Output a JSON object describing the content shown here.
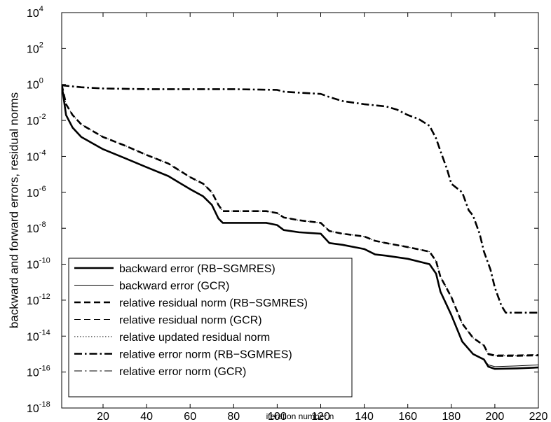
{
  "chart_data": {
    "type": "line",
    "title": "",
    "xlabel": "iteration number n",
    "ylabel": "backward and forward errors, residual norms",
    "xlim": [
      1,
      220
    ],
    "ylim": [
      1e-18,
      10000.0
    ],
    "yscale": "log",
    "grid": false,
    "legend_position": "bottom-left",
    "x_ticks": [
      20,
      40,
      60,
      80,
      100,
      120,
      140,
      160,
      180,
      200,
      220
    ],
    "y_ticks": [
      {
        "exp": "4",
        "value": 10000.0
      },
      {
        "exp": "2",
        "value": 100.0
      },
      {
        "exp": "0",
        "value": 1
      },
      {
        "exp": "-2",
        "value": 0.01
      },
      {
        "exp": "-4",
        "value": 0.0001
      },
      {
        "exp": "-6",
        "value": 1e-06
      },
      {
        "exp": "-8",
        "value": 1e-08
      },
      {
        "exp": "-10",
        "value": 1e-10
      },
      {
        "exp": "-12",
        "value": 1e-12
      },
      {
        "exp": "-14",
        "value": 1e-14
      },
      {
        "exp": "-16",
        "value": 1e-16
      },
      {
        "exp": "-18",
        "value": 1e-18
      }
    ],
    "series": [
      {
        "name": "backward error (RB−SGMRES)",
        "style": "thick-solid",
        "x": [
          1,
          3,
          6,
          10,
          20,
          30,
          40,
          50,
          60,
          66,
          70,
          73,
          75,
          80,
          95,
          100,
          103,
          110,
          120,
          124,
          130,
          140,
          145,
          150,
          160,
          170,
          173,
          175,
          180,
          185,
          190,
          195,
          197,
          200,
          210,
          220
        ],
        "y": [
          1,
          0.02,
          0.004,
          0.0012,
          0.00025,
          8e-05,
          2.5e-05,
          8e-06,
          1.5e-06,
          6e-07,
          2e-07,
          3.5e-08,
          2e-08,
          2e-08,
          2e-08,
          1.5e-08,
          8e-09,
          6e-09,
          5e-09,
          1.5e-09,
          1.2e-09,
          7e-10,
          3.5e-10,
          3e-10,
          2e-10,
          1e-10,
          3e-11,
          3e-12,
          1.5e-13,
          5e-15,
          1e-15,
          5e-16,
          2e-16,
          1.5e-16,
          1.6e-16,
          1.8e-16
        ]
      },
      {
        "name": "backward error (GCR)",
        "style": "thin-solid",
        "x": [
          1,
          3,
          6,
          10,
          20,
          30,
          40,
          50,
          60,
          66,
          70,
          73,
          75,
          80,
          95,
          100,
          103,
          110,
          120,
          124,
          130,
          140,
          145,
          150,
          160,
          170,
          173,
          175,
          180,
          185,
          190,
          195,
          197,
          200,
          210,
          220
        ],
        "y": [
          1,
          0.02,
          0.004,
          0.0012,
          0.00025,
          8e-05,
          2.5e-05,
          8e-06,
          1.5e-06,
          6e-07,
          2e-07,
          3.5e-08,
          2e-08,
          2e-08,
          2e-08,
          1.5e-08,
          8e-09,
          6e-09,
          5e-09,
          1.5e-09,
          1.2e-09,
          7e-10,
          3.5e-10,
          3e-10,
          2e-10,
          1e-10,
          3e-11,
          3e-12,
          1.5e-13,
          5e-15,
          1e-15,
          5e-16,
          2.5e-16,
          2e-16,
          2.2e-16,
          2.5e-16
        ]
      },
      {
        "name": "relative residual norm (RB−SGMRES)",
        "style": "thick-dashed",
        "x": [
          1,
          3,
          6,
          10,
          20,
          30,
          40,
          50,
          60,
          66,
          70,
          73,
          75,
          80,
          95,
          100,
          103,
          110,
          120,
          124,
          130,
          140,
          145,
          150,
          160,
          170,
          173,
          175,
          180,
          185,
          190,
          195,
          197,
          200,
          210,
          220
        ],
        "y": [
          1,
          0.08,
          0.02,
          0.006,
          0.0012,
          0.0004,
          0.00012,
          4e-05,
          7e-06,
          3e-06,
          1e-06,
          2e-07,
          9e-08,
          9e-08,
          9e-08,
          7e-08,
          4e-08,
          2.8e-08,
          2e-08,
          7e-09,
          5e-09,
          3.5e-09,
          2e-09,
          1.5e-09,
          9e-10,
          5e-10,
          1.5e-10,
          2e-11,
          1.5e-12,
          5e-14,
          8e-15,
          3e-15,
          1e-15,
          8e-16,
          8e-16,
          8.5e-16
        ]
      },
      {
        "name": "relative residual norm (GCR)",
        "style": "thin-dashed",
        "x": [
          1,
          3,
          6,
          10,
          20,
          30,
          40,
          50,
          60,
          66,
          70,
          73,
          75,
          80,
          95,
          100,
          103,
          110,
          120,
          124,
          130,
          140,
          145,
          150,
          160,
          170,
          173,
          175,
          180,
          185,
          190,
          195,
          197,
          200,
          210,
          220
        ],
        "y": [
          1,
          0.08,
          0.02,
          0.006,
          0.0012,
          0.0004,
          0.00012,
          4e-05,
          7e-06,
          3e-06,
          1e-06,
          2e-07,
          9e-08,
          9e-08,
          9e-08,
          7e-08,
          4e-08,
          2.8e-08,
          2e-08,
          7e-09,
          5e-09,
          3.5e-09,
          2e-09,
          1.5e-09,
          9e-10,
          5e-10,
          1.5e-10,
          2e-11,
          1.5e-12,
          5e-14,
          8e-15,
          3e-15,
          1.1e-15,
          9e-16,
          9e-16,
          9.5e-16
        ]
      },
      {
        "name": "relative updated residual norm",
        "style": "dotted",
        "x": [
          1,
          3,
          6,
          10,
          20,
          30,
          40,
          50,
          60,
          66,
          70,
          73,
          75,
          80,
          95,
          100,
          103,
          110,
          120,
          124,
          130,
          140,
          145,
          150,
          160,
          170,
          173,
          175,
          180,
          185,
          190,
          195,
          197,
          200,
          210,
          220
        ],
        "y": [
          1,
          0.08,
          0.02,
          0.006,
          0.0012,
          0.0004,
          0.00012,
          4e-05,
          7e-06,
          3e-06,
          1e-06,
          2e-07,
          9e-08,
          9e-08,
          9e-08,
          7e-08,
          4e-08,
          2.8e-08,
          2e-08,
          7e-09,
          5e-09,
          3.5e-09,
          2e-09,
          1.5e-09,
          9e-10,
          5e-10,
          1.5e-10,
          2e-11,
          1.5e-12,
          5e-14,
          8e-15,
          3e-15,
          1e-15,
          8e-16,
          8e-16,
          8.5e-16
        ]
      },
      {
        "name": "relative error norm (RB−SGMRES)",
        "style": "thick-dashdot",
        "x": [
          1,
          10,
          20,
          40,
          60,
          80,
          100,
          103,
          110,
          120,
          124,
          130,
          140,
          150,
          155,
          160,
          165,
          170,
          173,
          175,
          178,
          180,
          185,
          188,
          190,
          193,
          195,
          198,
          200,
          203,
          205,
          210,
          220
        ],
        "y": [
          0.9,
          0.7,
          0.6,
          0.55,
          0.55,
          0.55,
          0.5,
          0.4,
          0.35,
          0.3,
          0.2,
          0.12,
          0.08,
          0.06,
          0.04,
          0.02,
          0.012,
          0.005,
          0.001,
          0.0002,
          2e-05,
          3e-06,
          1e-06,
          1e-07,
          5e-08,
          5e-09,
          5e-10,
          5e-11,
          5e-12,
          5e-13,
          2e-13,
          2e-13,
          2e-13
        ]
      },
      {
        "name": "relative error norm (GCR)",
        "style": "thin-dashdot",
        "x": [
          1,
          10,
          20,
          40,
          60,
          80,
          100,
          103,
          110,
          120,
          124,
          130,
          140,
          150,
          155,
          160,
          165,
          170,
          173,
          175,
          178,
          180,
          185,
          188,
          190,
          193,
          195,
          198,
          200,
          203,
          205,
          210,
          220
        ],
        "y": [
          0.9,
          0.7,
          0.6,
          0.55,
          0.55,
          0.55,
          0.5,
          0.4,
          0.35,
          0.3,
          0.2,
          0.12,
          0.08,
          0.06,
          0.04,
          0.02,
          0.012,
          0.005,
          0.001,
          0.0002,
          2e-05,
          3e-06,
          1e-06,
          1e-07,
          5e-08,
          5e-09,
          5e-10,
          5e-11,
          5e-12,
          5e-13,
          2e-13,
          2e-13,
          2e-13
        ]
      }
    ]
  }
}
